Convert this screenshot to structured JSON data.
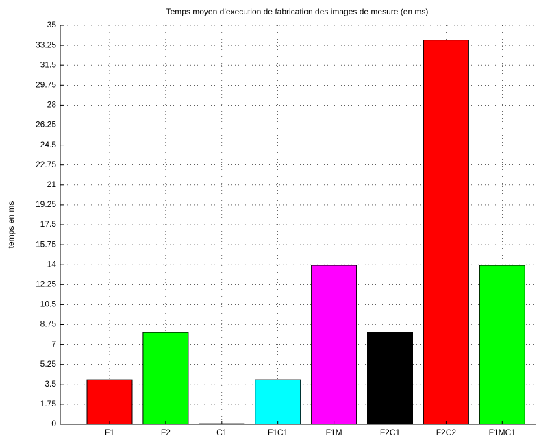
{
  "chart_data": {
    "type": "bar",
    "title": "Temps moyen d’execution de fabrication des images de mesure (en ms)",
    "ylabel": "temps en ms",
    "categories": [
      "F1",
      "F2",
      "C1",
      "F1C1",
      "F1M",
      "F2C1",
      "F2C2",
      "F1MC1"
    ],
    "values": [
      3.9,
      8.05,
      0.05,
      3.9,
      13.95,
      8.05,
      33.7,
      13.95
    ],
    "colors": [
      "#ff0000",
      "#00ff00",
      "#0000ff",
      "#00ffff",
      "#ff00ff",
      "#000000",
      "#ff0000",
      "#00ff00"
    ],
    "ylim": [
      0,
      35
    ],
    "yticks": [
      0,
      1.75,
      3.5,
      5.25,
      7,
      8.75,
      10.5,
      12.25,
      14,
      15.75,
      17.5,
      19.25,
      21,
      22.75,
      24.5,
      26.25,
      28,
      29.75,
      31.5,
      33.25,
      35
    ],
    "grid": true
  }
}
